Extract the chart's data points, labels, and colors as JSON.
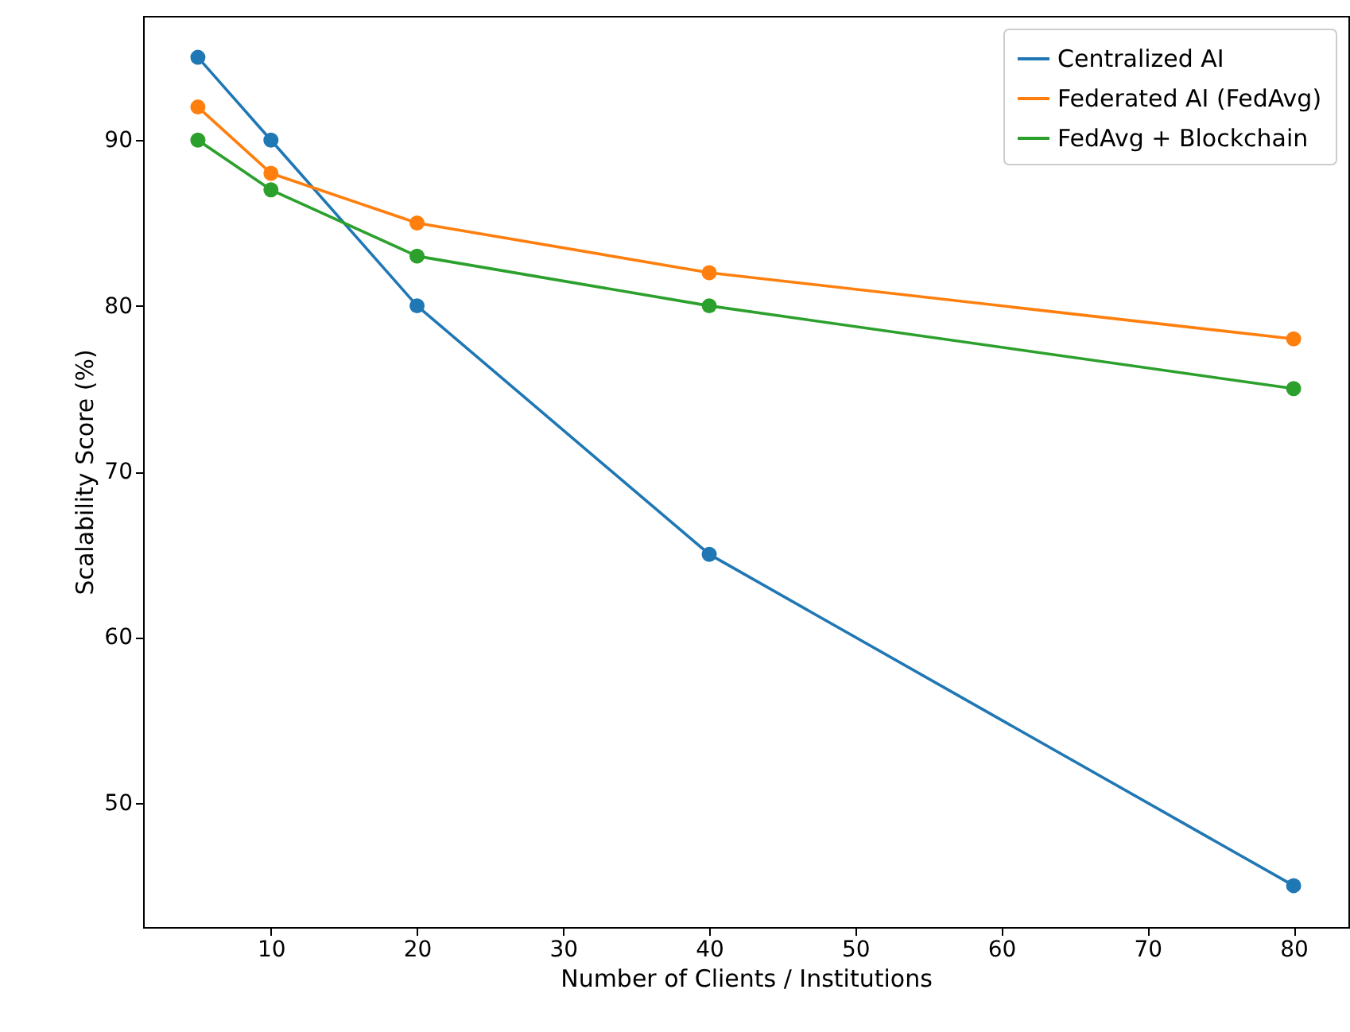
{
  "chart_data": {
    "type": "line",
    "xlabel": "Number of Clients / Institutions",
    "ylabel": "Scalability Score (%)",
    "x": [
      5,
      10,
      20,
      40,
      80
    ],
    "series": [
      {
        "name": "Centralized AI",
        "color": "#1f77b4",
        "values": [
          95,
          90,
          80,
          65,
          45
        ]
      },
      {
        "name": "Federated AI (FedAvg)",
        "color": "#ff7f0e",
        "values": [
          92,
          88,
          85,
          82,
          78
        ]
      },
      {
        "name": "FedAvg + Blockchain",
        "color": "#2ca02c",
        "values": [
          90,
          87,
          83,
          80,
          75
        ]
      }
    ],
    "xlim": [
      1.25,
      83.75
    ],
    "ylim": [
      42.5,
      97.5
    ],
    "xticks": [
      10,
      20,
      30,
      40,
      50,
      60,
      70,
      80
    ],
    "yticks": [
      50,
      60,
      70,
      80,
      90
    ],
    "legend": "top right",
    "marker": "circle",
    "grid": false
  }
}
